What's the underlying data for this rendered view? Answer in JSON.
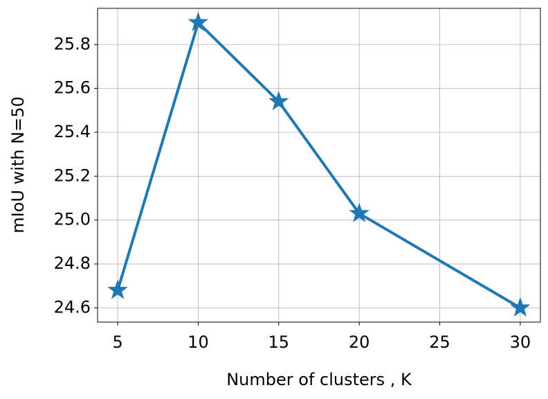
{
  "chart_data": {
    "type": "line",
    "xlabel": "Number of clusters , K",
    "ylabel": "mIoU with N=50",
    "x": [
      5,
      10,
      15,
      20,
      30
    ],
    "series": [
      {
        "name": "mIoU",
        "color": "#1f77b4",
        "values": [
          24.68,
          25.9,
          25.54,
          25.03,
          24.6
        ]
      }
    ],
    "xlim": [
      3.75,
      31.25
    ],
    "xticks": [
      5,
      10,
      15,
      20,
      25,
      30
    ],
    "ylim": [
      24.535,
      25.965
    ],
    "yticks": [
      24.6,
      24.8,
      {
        "value": 25,
        "label": "25.0"
      },
      25.2,
      25.4,
      25.6,
      25.8
    ],
    "grid": true,
    "marker": "star"
  }
}
